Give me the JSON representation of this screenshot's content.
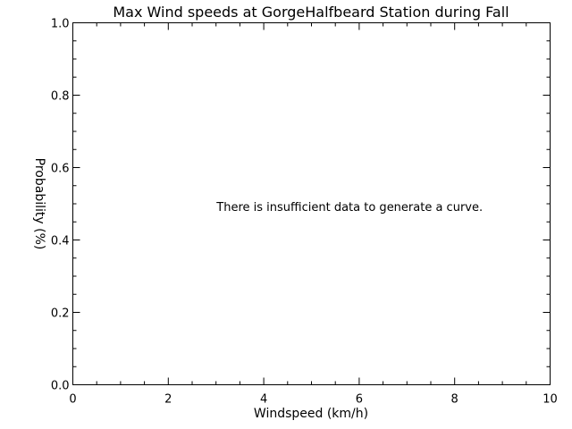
{
  "chart_data": {
    "type": "line",
    "title": "Max Wind speeds at GorgeHalfbeard Station during Fall",
    "xlabel": "Windspeed (km/h)",
    "ylabel": "Probability (%)",
    "xlim": [
      0,
      10
    ],
    "ylim": [
      0.0,
      1.0
    ],
    "x_ticks": [
      0,
      2,
      4,
      6,
      8,
      10
    ],
    "x_tick_labels": [
      "0",
      "2",
      "4",
      "6",
      "8",
      "10"
    ],
    "x_minor_step": 0.5,
    "y_ticks": [
      0.0,
      0.2,
      0.4,
      0.6,
      0.8,
      1.0
    ],
    "y_tick_labels": [
      "0.0",
      "0.2",
      "0.4",
      "0.6",
      "0.8",
      "1.0"
    ],
    "y_minor_step": 0.05,
    "grid": false,
    "series": [],
    "annotation": {
      "text": "There is insufficient data to generate a curve.",
      "x": 5.8,
      "y": 0.48
    },
    "colors": {
      "background": "#ffffff",
      "foreground": "#000000"
    }
  }
}
